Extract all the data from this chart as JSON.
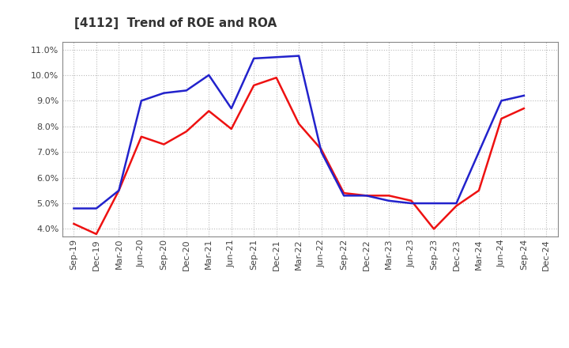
{
  "title": "[4112]  Trend of ROE and ROA",
  "labels": [
    "Sep-19",
    "Dec-19",
    "Mar-20",
    "Jun-20",
    "Sep-20",
    "Dec-20",
    "Mar-21",
    "Jun-21",
    "Sep-21",
    "Dec-21",
    "Mar-22",
    "Jun-22",
    "Sep-22",
    "Dec-22",
    "Mar-23",
    "Jun-23",
    "Sep-23",
    "Dec-23",
    "Mar-24",
    "Jun-24",
    "Sep-24",
    "Dec-24"
  ],
  "ROE": [
    4.2,
    3.8,
    5.5,
    7.6,
    7.3,
    7.8,
    8.6,
    7.9,
    9.6,
    9.9,
    8.1,
    7.1,
    5.4,
    5.3,
    5.3,
    5.1,
    4.0,
    4.9,
    5.5,
    8.3,
    8.7,
    null
  ],
  "ROA": [
    4.8,
    4.8,
    5.5,
    9.0,
    9.3,
    9.4,
    10.0,
    8.7,
    10.65,
    10.7,
    10.75,
    7.0,
    5.3,
    5.3,
    5.1,
    5.0,
    5.0,
    5.0,
    7.0,
    9.0,
    9.2,
    null
  ],
  "roe_color": "#ee1111",
  "roa_color": "#2222cc",
  "ylim": [
    3.7,
    11.3
  ],
  "yticks": [
    4.0,
    5.0,
    6.0,
    7.0,
    8.0,
    9.0,
    10.0,
    11.0
  ],
  "background_color": "#ffffff",
  "grid_color": "#aaaaaa",
  "title_fontsize": 11,
  "axis_fontsize": 8,
  "legend_fontsize": 9,
  "linewidth": 1.8
}
